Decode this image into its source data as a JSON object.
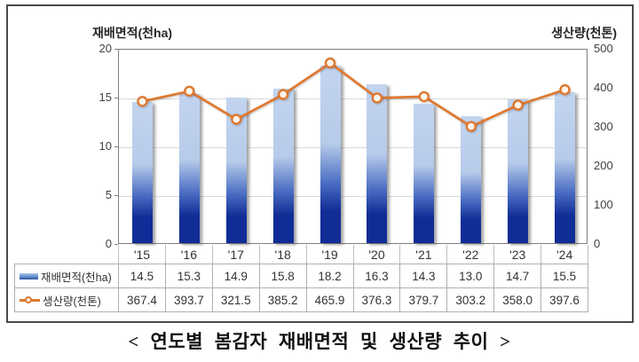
{
  "axis_titles": {
    "left": "재배면적(천ha)",
    "right": "생산량(천톤)"
  },
  "chart_data": {
    "type": "combo",
    "categories": [
      "'15",
      "'16",
      "'17",
      "'18",
      "'19",
      "'20",
      "'21",
      "'22",
      "'23",
      "'24"
    ],
    "series": [
      {
        "name": "재배면적(천ha)",
        "type": "bar",
        "axis": "left",
        "values": [
          14.5,
          15.3,
          14.9,
          15.8,
          18.2,
          16.3,
          14.3,
          13.0,
          14.7,
          15.5
        ]
      },
      {
        "name": "생산량(천톤)",
        "type": "line",
        "axis": "right",
        "values": [
          367.4,
          393.7,
          321.5,
          385.2,
          465.9,
          376.3,
          379.7,
          303.2,
          358.0,
          397.6
        ]
      }
    ],
    "left_axis": {
      "title": "재배면적(천ha)",
      "min": 0,
      "max": 20,
      "ticks": [
        20,
        15,
        10,
        5,
        0
      ]
    },
    "right_axis": {
      "title": "생산량(천톤)",
      "min": 0,
      "max": 500,
      "ticks": [
        500,
        400,
        300,
        200,
        100,
        0
      ]
    },
    "grid": true,
    "legend_position": "table-left"
  },
  "table": {
    "rows": [
      {
        "label": "재배면적(천ha)",
        "icon": "bar-series-swatch-icon",
        "values": [
          "14.5",
          "15.3",
          "14.9",
          "15.8",
          "18.2",
          "16.3",
          "14.3",
          "13.0",
          "14.7",
          "15.5"
        ]
      },
      {
        "label": "생산량(천톤)",
        "icon": "line-series-swatch-icon",
        "values": [
          "367.4",
          "393.7",
          "321.5",
          "385.2",
          "465.9",
          "376.3",
          "379.7",
          "303.2",
          "358.0",
          "397.6"
        ]
      }
    ]
  },
  "caption": "< 연도별 봄감자 재배면적 및 생산량 추이 >",
  "colors": {
    "bar_top": "#c2d4ef",
    "bar_light": "#b7cbea",
    "bar_mid": "#4b6ec3",
    "bar_bottom": "#102c96",
    "line": "#e0782f",
    "marker_fill": "#fdf6ee",
    "grid": "#d9d9d9",
    "plot_border": "#7f7f7f"
  }
}
